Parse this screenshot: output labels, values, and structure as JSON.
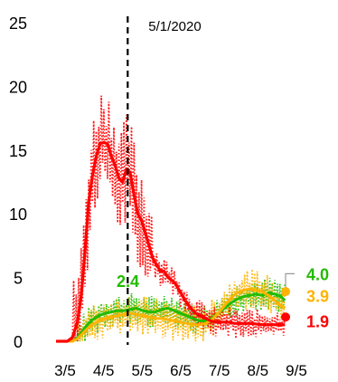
{
  "chart_data": {
    "type": "line",
    "title": "",
    "xlabel": "",
    "ylabel": "",
    "ylim": [
      0,
      25
    ],
    "y_ticks": [
      "0",
      "5",
      "10",
      "15",
      "20",
      "25"
    ],
    "x_ticks": [
      "3/5",
      "4/5",
      "5/5",
      "6/5",
      "7/5",
      "8/5",
      "9/5"
    ],
    "x_range": [
      "2020-03-05",
      "2020-09-05"
    ],
    "grid": false,
    "legend": "none",
    "vline": {
      "date": "2020-05-01",
      "label": "5/1/2020"
    },
    "series": [
      {
        "key": "red",
        "color": "#ff0000",
        "points": [
          [
            "2020-03-05",
            0
          ],
          [
            "2020-03-14",
            0
          ],
          [
            "2020-03-18",
            0.3
          ],
          [
            "2020-03-22",
            1.5
          ],
          [
            "2020-03-25",
            3.5
          ],
          [
            "2020-03-28",
            7
          ],
          [
            "2020-03-31",
            11
          ],
          [
            "2020-04-03",
            13
          ],
          [
            "2020-04-06",
            14.5
          ],
          [
            "2020-04-09",
            15.5
          ],
          [
            "2020-04-12",
            15.6
          ],
          [
            "2020-04-15",
            15.5
          ],
          [
            "2020-04-18",
            14.5
          ],
          [
            "2020-04-21",
            13.8
          ],
          [
            "2020-04-24",
            12.8
          ],
          [
            "2020-04-27",
            12.5
          ],
          [
            "2020-04-30",
            13.5
          ],
          [
            "2020-05-03",
            13.2
          ],
          [
            "2020-05-06",
            11.5
          ],
          [
            "2020-05-09",
            10
          ],
          [
            "2020-05-12",
            9.5
          ],
          [
            "2020-05-15",
            8.5
          ],
          [
            "2020-05-18",
            7.5
          ],
          [
            "2020-05-21",
            6.5
          ],
          [
            "2020-05-24",
            6
          ],
          [
            "2020-05-27",
            5.5
          ],
          [
            "2020-05-30",
            5.5
          ],
          [
            "2020-06-02",
            5
          ],
          [
            "2020-06-05",
            4.8
          ],
          [
            "2020-06-08",
            4.5
          ],
          [
            "2020-06-11",
            4
          ],
          [
            "2020-06-14",
            3.5
          ],
          [
            "2020-06-17",
            3
          ],
          [
            "2020-06-20",
            2.6
          ],
          [
            "2020-06-24",
            2.2
          ],
          [
            "2020-06-28",
            2
          ],
          [
            "2020-07-02",
            1.8
          ],
          [
            "2020-07-06",
            1.6
          ],
          [
            "2020-07-10",
            1.5
          ],
          [
            "2020-07-15",
            1.5
          ],
          [
            "2020-07-20",
            1.5
          ],
          [
            "2020-07-25",
            1.4
          ],
          [
            "2020-08-01",
            1.4
          ],
          [
            "2020-08-08",
            1.4
          ],
          [
            "2020-08-15",
            1.3
          ],
          [
            "2020-08-22",
            1.3
          ],
          [
            "2020-08-29",
            1.3
          ],
          [
            "2020-09-03",
            1.3
          ]
        ],
        "end_label": "1.9",
        "end_marker": 1.9
      },
      {
        "key": "green",
        "color": "#22bb00",
        "points": [
          [
            "2020-03-05",
            0
          ],
          [
            "2020-03-18",
            0
          ],
          [
            "2020-03-22",
            0.3
          ],
          [
            "2020-03-26",
            0.8
          ],
          [
            "2020-03-30",
            1.3
          ],
          [
            "2020-04-03",
            1.7
          ],
          [
            "2020-04-08",
            2
          ],
          [
            "2020-04-13",
            2.2
          ],
          [
            "2020-04-18",
            2.3
          ],
          [
            "2020-04-23",
            2.4
          ],
          [
            "2020-04-28",
            2.4
          ],
          [
            "2020-05-03",
            2.5
          ],
          [
            "2020-05-08",
            2.6
          ],
          [
            "2020-05-13",
            2.4
          ],
          [
            "2020-05-18",
            2.3
          ],
          [
            "2020-05-23",
            2.3
          ],
          [
            "2020-05-28",
            2.5
          ],
          [
            "2020-06-02",
            2.6
          ],
          [
            "2020-06-07",
            2.4
          ],
          [
            "2020-06-12",
            2.2
          ],
          [
            "2020-06-17",
            2
          ],
          [
            "2020-06-22",
            1.8
          ],
          [
            "2020-06-27",
            1.6
          ],
          [
            "2020-07-02",
            1.6
          ],
          [
            "2020-07-07",
            1.8
          ],
          [
            "2020-07-12",
            2.2
          ],
          [
            "2020-07-17",
            2.6
          ],
          [
            "2020-07-22",
            3
          ],
          [
            "2020-07-27",
            3.3
          ],
          [
            "2020-08-01",
            3.5
          ],
          [
            "2020-08-06",
            3.6
          ],
          [
            "2020-08-11",
            3.7
          ],
          [
            "2020-08-16",
            3.6
          ],
          [
            "2020-08-21",
            3.8
          ],
          [
            "2020-08-26",
            3.7
          ],
          [
            "2020-08-31",
            3.5
          ],
          [
            "2020-09-03",
            3.2
          ]
        ],
        "end_label": "4.0",
        "annotation": "2.4"
      },
      {
        "key": "orange",
        "color": "#ffb300",
        "points": [
          [
            "2020-03-05",
            0
          ],
          [
            "2020-03-18",
            0
          ],
          [
            "2020-03-22",
            0.2
          ],
          [
            "2020-03-26",
            0.6
          ],
          [
            "2020-03-30",
            1
          ],
          [
            "2020-04-03",
            1.3
          ],
          [
            "2020-04-08",
            1.6
          ],
          [
            "2020-04-13",
            1.8
          ],
          [
            "2020-04-18",
            1.9
          ],
          [
            "2020-04-23",
            2
          ],
          [
            "2020-04-28",
            2.1
          ],
          [
            "2020-05-03",
            2.2
          ],
          [
            "2020-05-08",
            2.1
          ],
          [
            "2020-05-13",
            2
          ],
          [
            "2020-05-18",
            1.9
          ],
          [
            "2020-05-23",
            1.8
          ],
          [
            "2020-05-28",
            1.8
          ],
          [
            "2020-06-02",
            1.7
          ],
          [
            "2020-06-07",
            1.6
          ],
          [
            "2020-06-12",
            1.5
          ],
          [
            "2020-06-17",
            1.4
          ],
          [
            "2020-06-22",
            1.3
          ],
          [
            "2020-06-27",
            1.3
          ],
          [
            "2020-07-02",
            1.4
          ],
          [
            "2020-07-07",
            1.7
          ],
          [
            "2020-07-12",
            2.2
          ],
          [
            "2020-07-17",
            2.8
          ],
          [
            "2020-07-22",
            3.4
          ],
          [
            "2020-07-27",
            3.8
          ],
          [
            "2020-08-01",
            4
          ],
          [
            "2020-08-06",
            4.1
          ],
          [
            "2020-08-11",
            4
          ],
          [
            "2020-08-16",
            3.9
          ],
          [
            "2020-08-21",
            3.6
          ],
          [
            "2020-08-26",
            3.2
          ],
          [
            "2020-08-31",
            2.8
          ],
          [
            "2020-09-03",
            2.6
          ]
        ],
        "end_label": "3.9",
        "end_marker": 3.9
      }
    ],
    "noise": [
      {
        "series": "red",
        "amplitude": 4.5,
        "until": "2020-05-20",
        "after": 1.2
      },
      {
        "series": "green",
        "amplitude": 1.3
      },
      {
        "series": "orange",
        "amplitude": 1.6
      }
    ]
  }
}
